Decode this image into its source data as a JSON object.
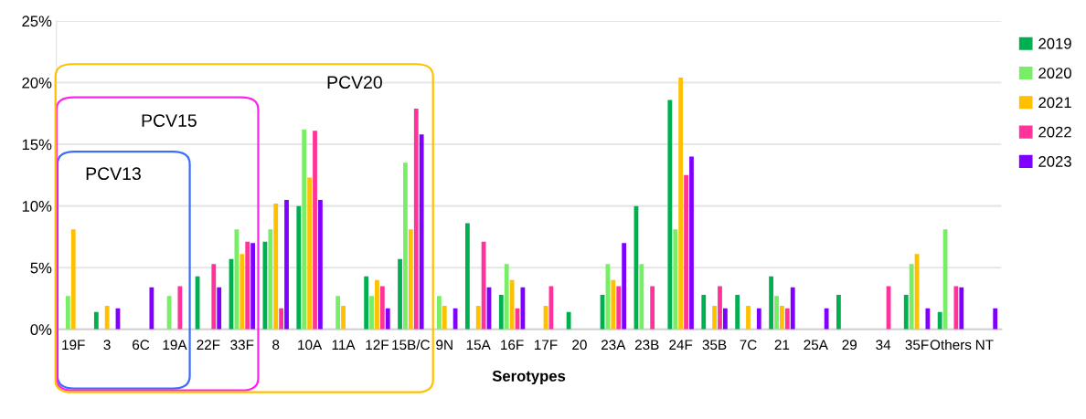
{
  "chart_data": {
    "type": "bar",
    "xlabel": "Serotypes",
    "categories": [
      "19F",
      "3",
      "6C",
      "19A",
      "22F",
      "33F",
      "8",
      "10A",
      "11A",
      "12F",
      "15B/C",
      "9N",
      "15A",
      "16F",
      "17F",
      "20",
      "23A",
      "23B",
      "24F",
      "35B",
      "7C",
      "21",
      "25A",
      "29",
      "34",
      "35F",
      "Others",
      "NT"
    ],
    "series": [
      {
        "name": "2019",
        "color": "#00b050",
        "values": [
          null,
          1.4,
          null,
          null,
          4.3,
          5.7,
          7.1,
          10.0,
          null,
          4.3,
          5.7,
          null,
          8.6,
          2.8,
          null,
          1.4,
          2.8,
          10.0,
          18.6,
          2.8,
          2.8,
          4.3,
          null,
          2.8,
          null,
          2.8,
          1.4,
          null
        ]
      },
      {
        "name": "2020",
        "color": "#77ee66",
        "values": [
          2.7,
          null,
          null,
          2.7,
          null,
          8.1,
          8.1,
          16.2,
          2.7,
          2.7,
          13.5,
          2.7,
          null,
          5.3,
          null,
          null,
          5.3,
          5.3,
          8.1,
          null,
          null,
          2.7,
          null,
          null,
          null,
          5.3,
          8.1,
          null
        ]
      },
      {
        "name": "2021",
        "color": "#ffc000",
        "values": [
          8.1,
          1.9,
          null,
          null,
          null,
          6.1,
          10.2,
          12.3,
          1.9,
          4.0,
          8.1,
          1.9,
          1.9,
          4.0,
          1.9,
          null,
          4.0,
          null,
          20.4,
          1.9,
          1.9,
          1.9,
          null,
          null,
          null,
          6.1,
          null,
          null
        ]
      },
      {
        "name": "2022",
        "color": "#ff3399",
        "values": [
          null,
          null,
          null,
          3.5,
          5.3,
          7.1,
          1.7,
          16.1,
          null,
          3.5,
          17.9,
          null,
          7.1,
          1.7,
          3.5,
          null,
          3.5,
          3.5,
          12.5,
          3.5,
          null,
          1.7,
          null,
          null,
          3.5,
          null,
          3.5,
          null
        ]
      },
      {
        "name": "2023",
        "color": "#8000ff",
        "values": [
          null,
          1.7,
          3.4,
          null,
          3.4,
          7.0,
          10.5,
          10.5,
          null,
          1.7,
          15.8,
          1.7,
          3.4,
          3.4,
          null,
          null,
          7.0,
          null,
          14.0,
          1.7,
          1.7,
          3.4,
          1.7,
          null,
          null,
          1.7,
          3.4,
          1.7
        ]
      }
    ],
    "ylim": [
      0,
      25
    ],
    "yticks": [
      {
        "value": 0,
        "label": "0%"
      },
      {
        "value": 5,
        "label": "5%"
      },
      {
        "value": 10,
        "label": "10%"
      },
      {
        "value": 15,
        "label": "15%"
      },
      {
        "value": 20,
        "label": "20%"
      },
      {
        "value": 25,
        "label": "25%"
      }
    ],
    "grid": "y",
    "legend": "top right",
    "annotations": [
      "PCV13",
      "PCV15",
      "PCV20"
    ]
  }
}
